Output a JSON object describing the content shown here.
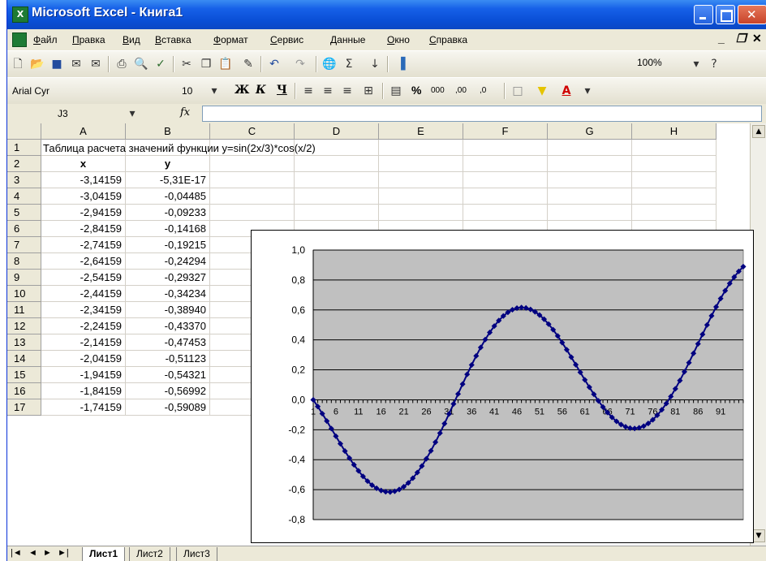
{
  "window": {
    "title": "Microsoft Excel - Книга1",
    "app_icon": "excel-icon"
  },
  "menu": {
    "items": [
      "Файл",
      "Правка",
      "Вид",
      "Вставка",
      "Формат",
      "Сервис",
      "Данные",
      "Окно",
      "Справка"
    ],
    "doc_controls": [
      "_",
      "⬛",
      "✕"
    ]
  },
  "toolbar": {
    "zoom": "100%",
    "sum_glyph": "Σ"
  },
  "format_bar": {
    "font": "Arial Cyr",
    "size": "10",
    "bold": "Ж",
    "italic": "К",
    "underline": "Ч",
    "percent": "%",
    "thousands": "000",
    "inc_dec": ",00",
    "dec_dec": ",0"
  },
  "formula_bar": {
    "name_box": "J3",
    "fx": "fx",
    "value": ""
  },
  "grid": {
    "columns": [
      "A",
      "B",
      "C",
      "D",
      "E",
      "F",
      "G",
      "H"
    ],
    "rows": [
      "1",
      "2",
      "3",
      "4",
      "5",
      "6",
      "7",
      "8",
      "9",
      "10",
      "11",
      "12",
      "13",
      "14",
      "15",
      "16",
      "17"
    ],
    "title": "Таблица расчета значений функции y=sin(2x/3)*cos(x/2)",
    "header_x": "x",
    "header_y": "y",
    "x_values": [
      "-3,14159",
      "-3,04159",
      "-2,94159",
      "-2,84159",
      "-2,74159",
      "-2,64159",
      "-2,54159",
      "-2,44159",
      "-2,34159",
      "-2,24159",
      "-2,14159",
      "-2,04159",
      "-1,94159",
      "-1,84159",
      "-1,74159"
    ],
    "y_values": [
      "-5,31E-17",
      "-0,04485",
      "-0,09233",
      "-0,14168",
      "-0,19215",
      "-0,24294",
      "-0,29327",
      "-0,34234",
      "-0,38940",
      "-0,43370",
      "-0,47453",
      "-0,51123",
      "-0,54321",
      "-0,56992",
      "-0,59089"
    ]
  },
  "chart_data": {
    "type": "line",
    "title": "",
    "xlabel": "",
    "ylabel": "",
    "ylim": [
      -0.8,
      1.0
    ],
    "yticks": [
      "1,0",
      "0,8",
      "0,6",
      "0,4",
      "0,2",
      "0,0",
      "-0,2",
      "-0,4",
      "-0,6",
      "-0,8"
    ],
    "xticks": [
      "1",
      "6",
      "11",
      "16",
      "21",
      "26",
      "31",
      "36",
      "41",
      "46",
      "51",
      "56",
      "61",
      "66",
      "71",
      "76",
      "81",
      "86",
      "91"
    ],
    "x_start": -3.14159,
    "x_step": 0.1,
    "point_count": 96,
    "grid": true,
    "legend": "none",
    "series_color": "#000080",
    "plot_bg": "#C0C0C0"
  },
  "sheet_tabs": {
    "nav": [
      "|◄",
      "◄",
      "►",
      "►|"
    ],
    "tabs": [
      "Лист1",
      "Лист2",
      "Лист3"
    ]
  }
}
